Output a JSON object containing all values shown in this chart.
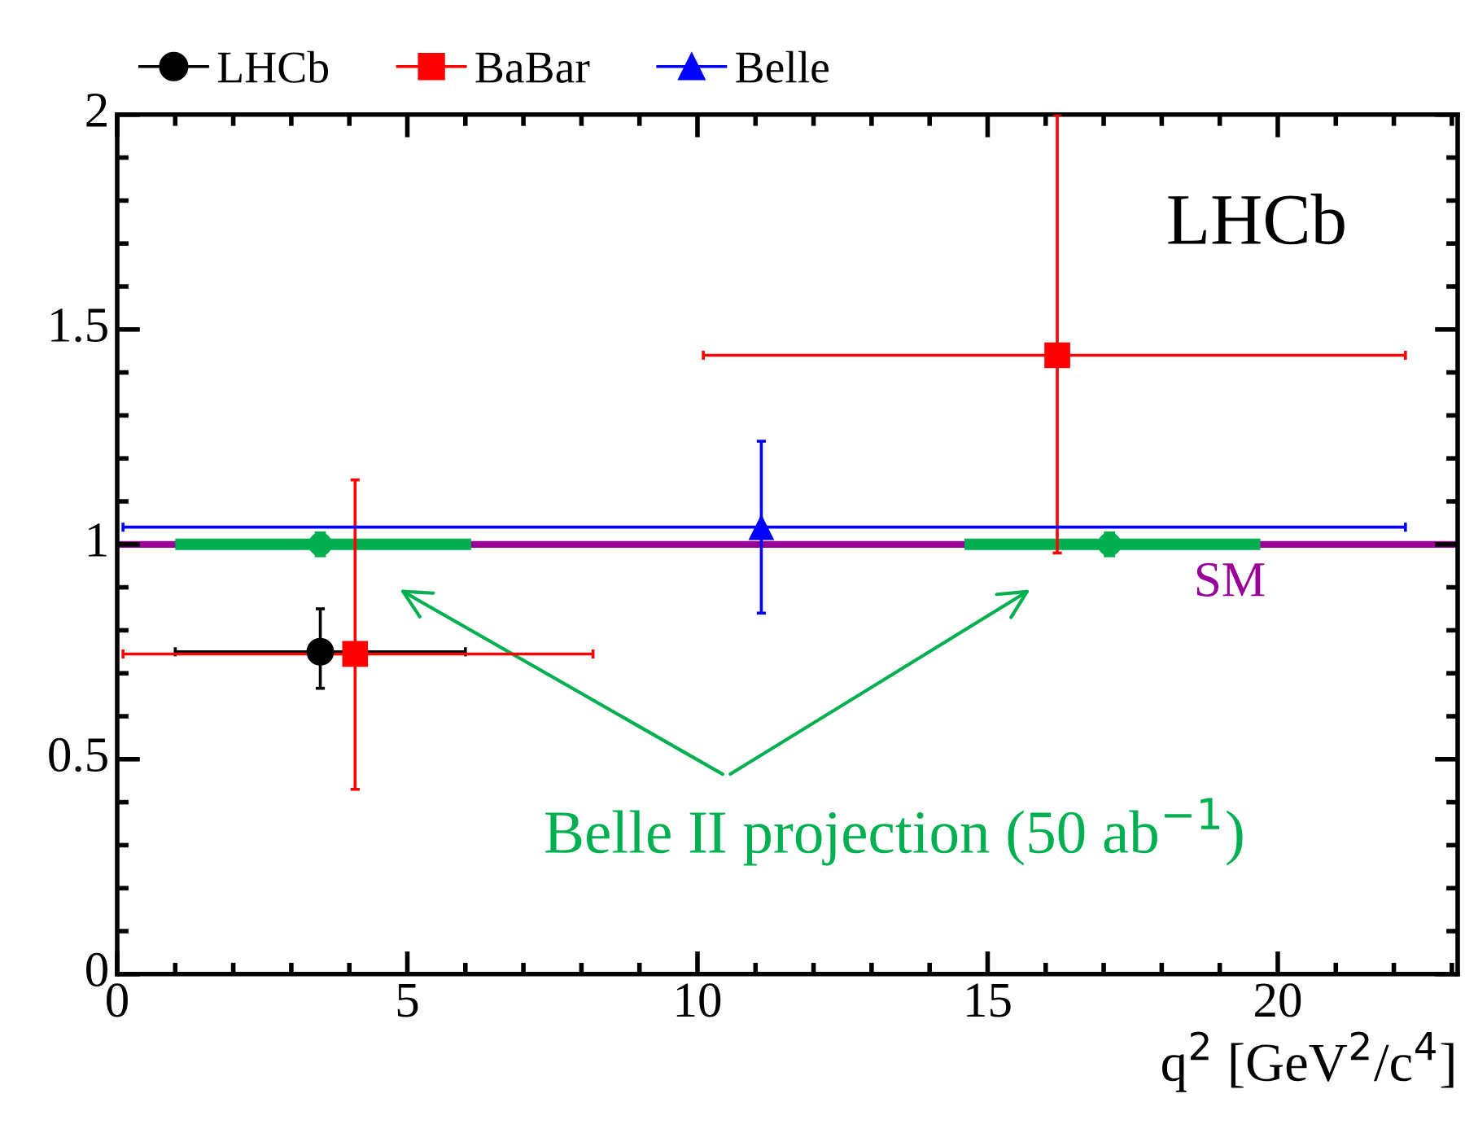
{
  "chart_data": {
    "type": "scatter",
    "xlabel": "q$^{2}$ [GeV$^{2}$/c$^{4}$]",
    "series": [
      {
        "name": "LHCb",
        "color": "#000000",
        "marker": "circle",
        "x": [
          3.5
        ],
        "values": [
          0.75
        ],
        "errors": [
          [
            0.665,
            0.85
          ]
        ],
        "xerrors": [
          [
            1.0,
            6.0
          ]
        ]
      },
      {
        "name": "BaBar",
        "color": "#ff0000",
        "marker": "square",
        "x": [
          4.1,
          16.2
        ],
        "values": [
          0.745,
          1.44
        ],
        "errors": [
          [
            0.43,
            1.15
          ],
          [
            0.98,
            2.0
          ]
        ],
        "xerrors": [
          [
            0.1,
            8.2
          ],
          [
            10.1,
            22.2
          ]
        ]
      },
      {
        "name": "Belle",
        "color": "#0000ff",
        "marker": "triangle",
        "x": [
          11.1
        ],
        "values": [
          1.04
        ],
        "errors": [
          [
            0.84,
            1.24
          ]
        ],
        "xerrors": [
          [
            0.1,
            22.2
          ]
        ]
      },
      {
        "name": "Belle II projection (50 ab$^{−1}$)",
        "color": "#00b050",
        "marker": "circle",
        "x": [
          3.5,
          17.1
        ],
        "values": [
          1.0,
          1.0
        ],
        "errors": [
          [
            0.97,
            1.03
          ],
          [
            0.97,
            1.03
          ]
        ],
        "xerrors": [
          [
            1.0,
            6.1
          ],
          [
            14.6,
            19.7
          ]
        ]
      }
    ],
    "ref_lines": [
      {
        "axis": "y",
        "value": 1.0,
        "label": "SM",
        "color": "#990099"
      }
    ],
    "annotations": [
      "LHCb"
    ],
    "xlim": [
      0,
      23.1
    ],
    "ylim": [
      0,
      2
    ],
    "xticks": [
      0,
      5,
      10,
      15,
      20
    ],
    "yticks": [
      0,
      0.5,
      1,
      1.5,
      2
    ],
    "grid": false,
    "legend": "top"
  }
}
